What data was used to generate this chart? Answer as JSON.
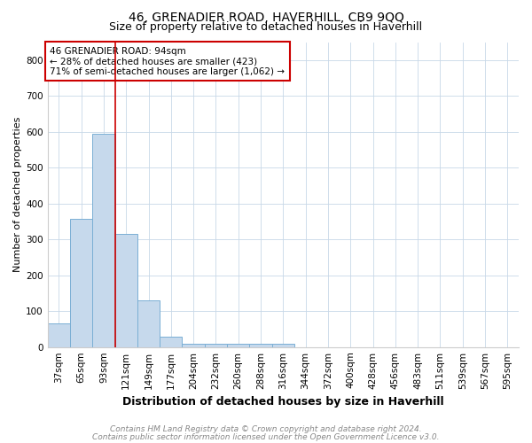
{
  "title": "46, GRENADIER ROAD, HAVERHILL, CB9 9QQ",
  "subtitle": "Size of property relative to detached houses in Haverhill",
  "xlabel": "Distribution of detached houses by size in Haverhill",
  "ylabel": "Number of detached properties",
  "footnote1": "Contains HM Land Registry data © Crown copyright and database right 2024.",
  "footnote2": "Contains public sector information licensed under the Open Government Licence v3.0.",
  "categories": [
    "37sqm",
    "65sqm",
    "93sqm",
    "121sqm",
    "149sqm",
    "177sqm",
    "204sqm",
    "232sqm",
    "260sqm",
    "288sqm",
    "316sqm",
    "344sqm",
    "372sqm",
    "400sqm",
    "428sqm",
    "456sqm",
    "483sqm",
    "511sqm",
    "539sqm",
    "567sqm",
    "595sqm"
  ],
  "values": [
    65,
    358,
    595,
    315,
    130,
    28,
    10,
    10,
    10,
    10,
    8,
    0,
    0,
    0,
    0,
    0,
    0,
    0,
    0,
    0,
    0
  ],
  "bar_color": "#c6d9ec",
  "bar_edge_color": "#7aafd4",
  "red_line_index": 2,
  "red_line_color": "#cc0000",
  "annotation_text": "46 GRENADIER ROAD: 94sqm\n← 28% of detached houses are smaller (423)\n71% of semi-detached houses are larger (1,062) →",
  "annotation_box_color": "#ffffff",
  "annotation_box_edge": "#cc0000",
  "ylim": [
    0,
    850
  ],
  "yticks": [
    0,
    100,
    200,
    300,
    400,
    500,
    600,
    700,
    800
  ],
  "background_color": "#ffffff",
  "grid_color": "#c8d8e8",
  "title_fontsize": 10,
  "subtitle_fontsize": 9,
  "ylabel_fontsize": 8,
  "xlabel_fontsize": 9,
  "tick_fontsize": 7.5,
  "annotation_fontsize": 7.5,
  "footnote_fontsize": 6.5
}
